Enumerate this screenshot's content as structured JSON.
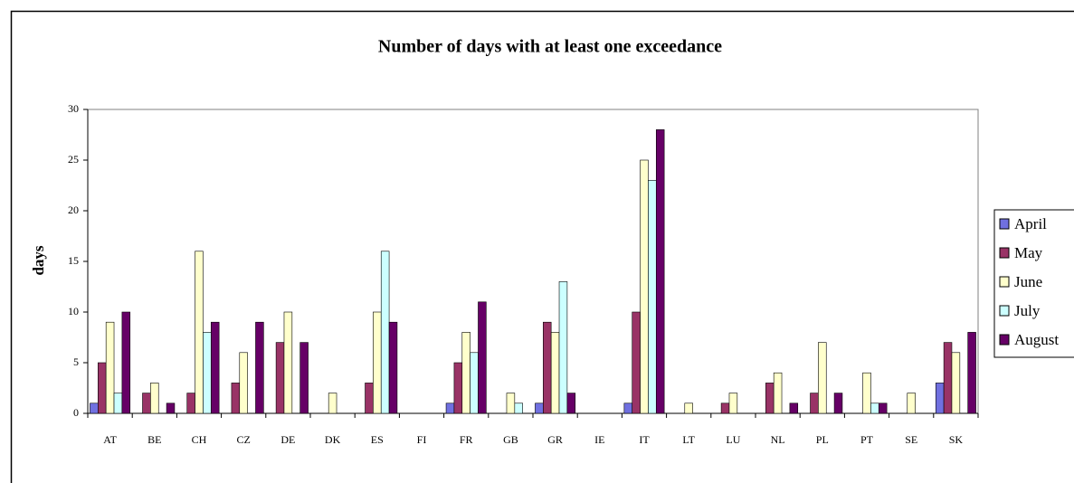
{
  "chart_data": {
    "type": "bar",
    "title": "Number of days with at least one exceedance",
    "y_label": "days",
    "categories": [
      "AT",
      "BE",
      "CH",
      "CZ",
      "DE",
      "DK",
      "ES",
      "FI",
      "FR",
      "GB",
      "GR",
      "IE",
      "IT",
      "LT",
      "LU",
      "NL",
      "PL",
      "PT",
      "SE",
      "SK"
    ],
    "series": [
      {
        "name": "April",
        "color": "#7070e0",
        "values": [
          1,
          0,
          0,
          0,
          0,
          0,
          0,
          0,
          1,
          0,
          1,
          0,
          1,
          0,
          0,
          0,
          0,
          0,
          0,
          3
        ]
      },
      {
        "name": "May",
        "color": "#993366",
        "values": [
          5,
          2,
          2,
          3,
          7,
          0,
          3,
          0,
          5,
          0,
          9,
          0,
          10,
          0,
          1,
          3,
          2,
          0,
          0,
          7
        ]
      },
      {
        "name": "June",
        "color": "#ffffcc",
        "values": [
          9,
          3,
          16,
          6,
          10,
          2,
          10,
          0,
          8,
          2,
          8,
          0,
          25,
          1,
          2,
          4,
          7,
          4,
          2,
          6
        ]
      },
      {
        "name": "July",
        "color": "#ccffff",
        "values": [
          2,
          0,
          8,
          0,
          0,
          0,
          16,
          0,
          6,
          1,
          13,
          0,
          23,
          0,
          0,
          0,
          0,
          1,
          0,
          0
        ]
      },
      {
        "name": "August",
        "color": "#660066",
        "values": [
          10,
          1,
          9,
          9,
          7,
          0,
          9,
          0,
          11,
          0,
          2,
          0,
          28,
          0,
          0,
          1,
          2,
          1,
          0,
          8
        ]
      }
    ],
    "ylim": [
      0,
      30
    ],
    "yticks": [
      0,
      5,
      10,
      15,
      20,
      25,
      30
    ],
    "legend": "right"
  }
}
